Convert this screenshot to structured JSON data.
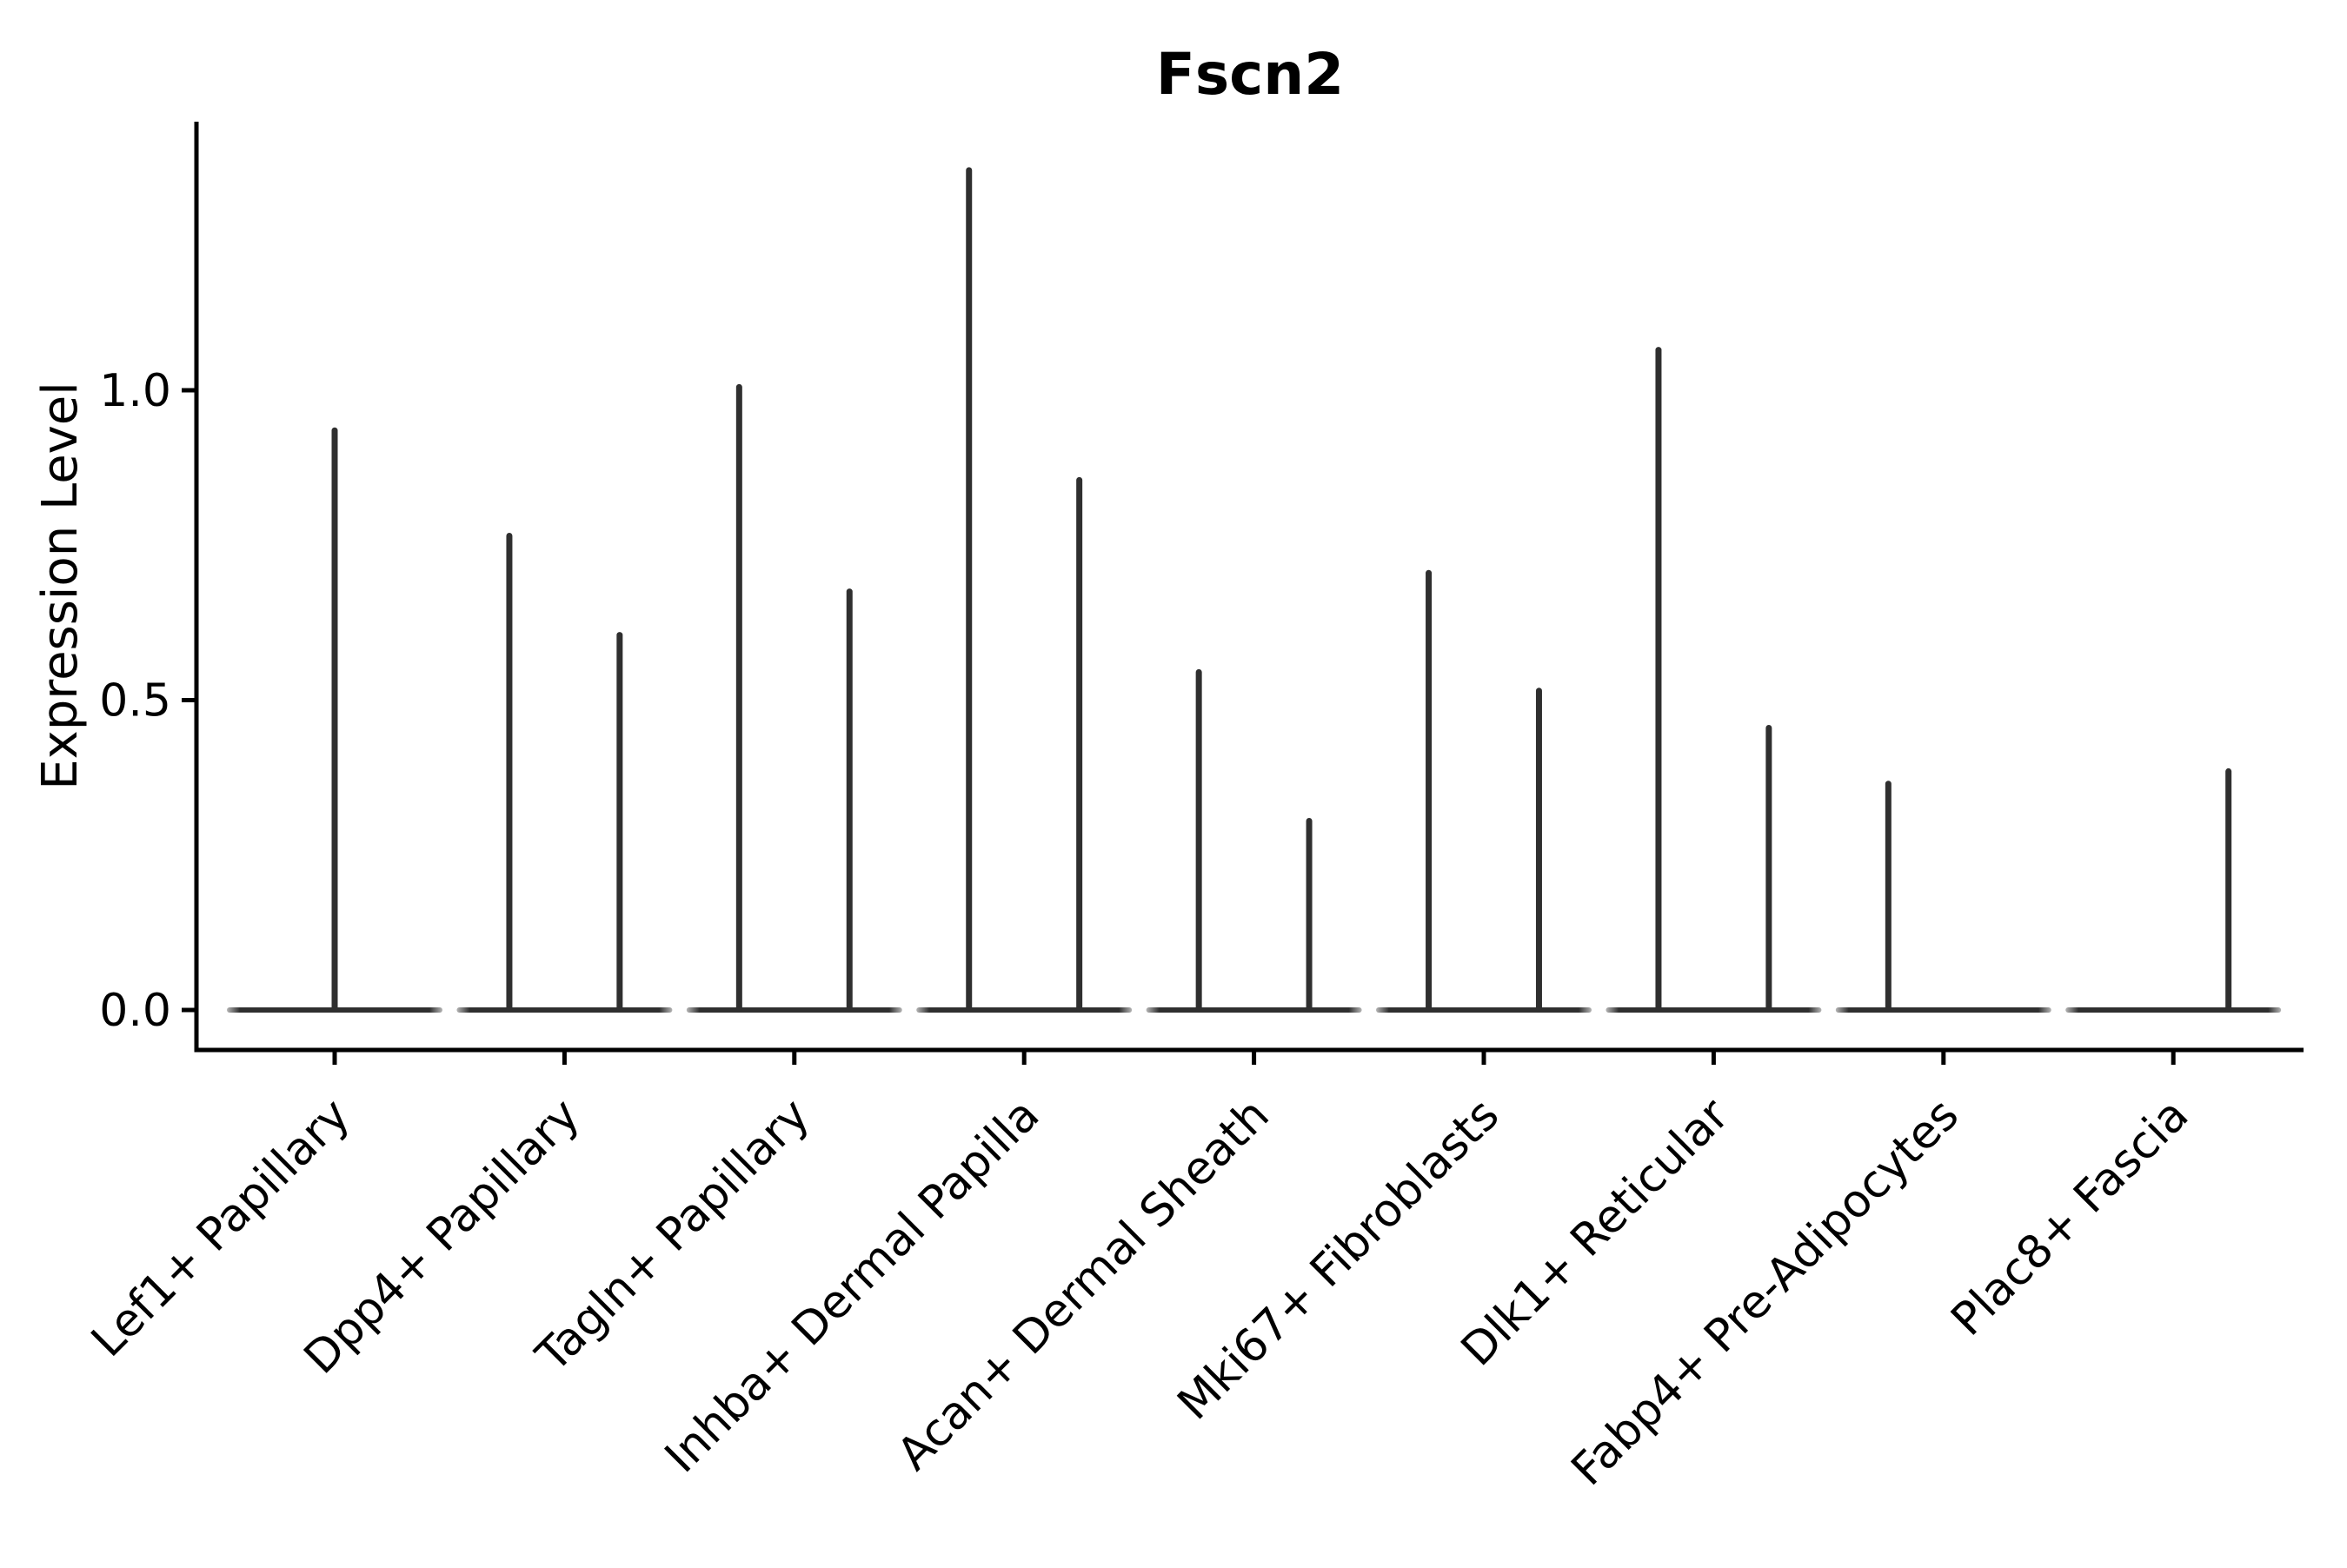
{
  "chart_data": {
    "type": "violin",
    "title": "Fscn2",
    "xlabel": "",
    "ylabel": "Expression Level",
    "ylim": [
      -0.06,
      1.43
    ],
    "grid": false,
    "legend": "none",
    "yticks": [
      {
        "value": 0.0,
        "label": "0.0"
      },
      {
        "value": 0.5,
        "label": "0.5"
      },
      {
        "value": 1.0,
        "label": "1.0"
      }
    ],
    "categories": [
      "Lef1+ Papillary",
      "Dpp4+ Papillary",
      "Tagln+ Papillary",
      "Inhba+ Dermal Papilla",
      "Acan+ Dermal Sheath",
      "Mki67+ Fibroblasts",
      "Dlk1+ Reticular",
      "Fabp4+ Pre-Adipocytes",
      "Plac8+ Fascia"
    ],
    "violins": [
      {
        "label": "Lef1+ Papillary",
        "spikes": [
          {
            "pos": 0.0,
            "peak": 0.94
          }
        ]
      },
      {
        "label": "Dpp4+ Papillary",
        "spikes": [
          {
            "pos": -0.24,
            "peak": 0.77
          },
          {
            "pos": 0.24,
            "peak": 0.61
          }
        ]
      },
      {
        "label": "Tagln+ Papillary",
        "spikes": [
          {
            "pos": -0.24,
            "peak": 1.01
          },
          {
            "pos": 0.24,
            "peak": 0.68
          }
        ]
      },
      {
        "label": "Inhba+ Dermal Papilla",
        "spikes": [
          {
            "pos": -0.24,
            "peak": 1.36
          },
          {
            "pos": 0.24,
            "peak": 0.86
          }
        ]
      },
      {
        "label": "Acan+ Dermal Sheath",
        "spikes": [
          {
            "pos": -0.24,
            "peak": 0.55
          },
          {
            "pos": 0.24,
            "peak": 0.31
          }
        ]
      },
      {
        "label": "Mki67+ Fibroblasts",
        "spikes": [
          {
            "pos": -0.24,
            "peak": 0.71
          },
          {
            "pos": 0.24,
            "peak": 0.52
          }
        ]
      },
      {
        "label": "Dlk1+ Reticular",
        "spikes": [
          {
            "pos": -0.24,
            "peak": 1.07
          },
          {
            "pos": 0.24,
            "peak": 0.46
          }
        ]
      },
      {
        "label": "Fabp4+ Pre-Adipocytes",
        "spikes": [
          {
            "pos": -0.24,
            "peak": 0.37
          }
        ]
      },
      {
        "label": "Plac8+ Fascia",
        "spikes": [
          {
            "pos": 0.24,
            "peak": 0.39
          }
        ]
      }
    ],
    "baseline_value": 0.0,
    "colors": {
      "violin": "#2f2f2f",
      "axis": "#000000",
      "text": "#000000",
      "background": "#ffffff"
    }
  }
}
